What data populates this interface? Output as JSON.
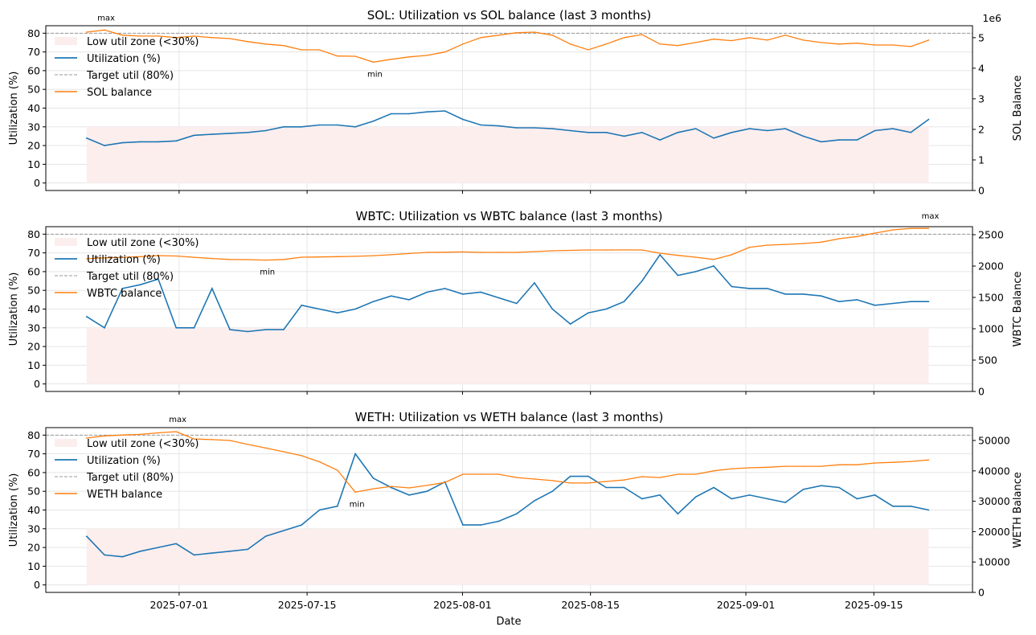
{
  "chart_data": {
    "type": "line",
    "x_tick_labels": [
      "2025-07-01",
      "2025-07-15",
      "2025-08-01",
      "2025-08-15",
      "2025-09-01",
      "2025-09-15"
    ],
    "xlabel": "Date",
    "xlim": [
      "2025-06-16T10:00:00Z",
      "2025-09-25T19:00:00Z"
    ],
    "x_start": "2025-06-20T21:00:00Z",
    "x_end": "2025-09-21T00:00:00Z",
    "grid": true,
    "legend_placement": "upper-left",
    "colors": {
      "utilization": "#1f77b4",
      "balance": "#ff7f0e",
      "target": "#999999",
      "low_zone": "#fdeeee"
    },
    "panels": [
      {
        "title": "SOL: Utilization vs SOL balance (last 3 months)",
        "ylabel": "Utilization (%)",
        "y2label": "SOL Balance",
        "y2_scale_label": "1e6",
        "ylim": [
          -4,
          84
        ],
        "y2lim": [
          0,
          5.39
        ],
        "yticks": [
          0,
          10,
          20,
          30,
          40,
          50,
          60,
          70,
          80
        ],
        "y2ticks": [
          0,
          1,
          2,
          3,
          4,
          5
        ],
        "target_util": 80,
        "low_zone_max": 30,
        "legend": [
          "Low util zone (<30%)",
          "Utilization (%)",
          "Target util (80%)",
          "SOL balance"
        ],
        "utilization": [
          24,
          20,
          21.5,
          22,
          22,
          22.5,
          25.5,
          26,
          26.5,
          27,
          28,
          30,
          30,
          31,
          31,
          30,
          33,
          37,
          37,
          38,
          38.5,
          34,
          31,
          30.5,
          29.5,
          29.5,
          29,
          28,
          27,
          27,
          25,
          27,
          23,
          27,
          29,
          24,
          27,
          29,
          28,
          29,
          25,
          22,
          23,
          23,
          28,
          29,
          27,
          34
        ],
        "balance": [
          5.18,
          5.25,
          5.08,
          5.05,
          5.05,
          5.0,
          5.05,
          5.0,
          4.97,
          4.87,
          4.79,
          4.74,
          4.6,
          4.6,
          4.4,
          4.39,
          4.2,
          4.29,
          4.37,
          4.42,
          4.53,
          4.79,
          5.0,
          5.08,
          5.16,
          5.18,
          5.08,
          4.79,
          4.6,
          4.79,
          5.0,
          5.1,
          4.79,
          4.74,
          4.84,
          4.95,
          4.9,
          5.0,
          4.92,
          5.08,
          4.92,
          4.84,
          4.79,
          4.82,
          4.76,
          4.76,
          4.71,
          4.92
        ],
        "annotations": [
          {
            "label": "max",
            "index": 1,
            "pos": "above"
          },
          {
            "label": "min",
            "index": 16,
            "pos": "below"
          }
        ]
      },
      {
        "title": "WBTC: Utilization vs WBTC balance (last 3 months)",
        "ylabel": "Utilization (%)",
        "y2label": "WBTC Balance",
        "ylim": [
          -4,
          84
        ],
        "y2lim": [
          0,
          2628
        ],
        "yticks": [
          0,
          10,
          20,
          30,
          40,
          50,
          60,
          70,
          80
        ],
        "y2ticks": [
          0,
          500,
          1000,
          1500,
          2000,
          2500
        ],
        "target_util": 80,
        "low_zone_max": 30,
        "legend": [
          "Low util zone (<30%)",
          "Utilization (%)",
          "Target util (80%)",
          "WBTC balance"
        ],
        "utilization": [
          36,
          30,
          51,
          53,
          56,
          30,
          30,
          51,
          29,
          28,
          29,
          29,
          42,
          40,
          38,
          40,
          44,
          47,
          45,
          49,
          51,
          48,
          49,
          46,
          43,
          54,
          40,
          32,
          38,
          40,
          44,
          55,
          69,
          58,
          60,
          63,
          52,
          51,
          51,
          48,
          48,
          47,
          44,
          45,
          42,
          43,
          44,
          44
        ],
        "balance": [
          2115,
          2130,
          2140,
          2150,
          2167,
          2160,
          2140,
          2120,
          2105,
          2103,
          2095,
          2105,
          2141,
          2145,
          2150,
          2155,
          2165,
          2180,
          2200,
          2218,
          2220,
          2225,
          2218,
          2218,
          2218,
          2230,
          2244,
          2250,
          2256,
          2256,
          2258,
          2256,
          2205,
          2170,
          2141,
          2105,
          2180,
          2300,
          2333,
          2345,
          2359,
          2380,
          2436,
          2470,
          2526,
          2577,
          2600,
          2600
        ],
        "annotations": [
          {
            "label": "max",
            "index": 47,
            "pos": "above"
          },
          {
            "label": "min",
            "index": 10,
            "pos": "below"
          }
        ]
      },
      {
        "title": "WETH: Utilization vs WETH balance (last 3 months)",
        "ylabel": "Utilization (%)",
        "y2label": "WETH Balance",
        "ylim": [
          -4,
          84
        ],
        "y2lim": [
          0,
          54230
        ],
        "yticks": [
          0,
          10,
          20,
          30,
          40,
          50,
          60,
          70,
          80
        ],
        "y2ticks": [
          0,
          10000,
          20000,
          30000,
          40000,
          50000
        ],
        "target_util": 80,
        "low_zone_max": 30,
        "legend": [
          "Low util zone (<30%)",
          "Utilization (%)",
          "Target util (80%)",
          "WETH balance"
        ],
        "utilization": [
          26,
          16,
          15,
          18,
          20,
          22,
          16,
          17,
          18,
          19,
          26,
          29,
          32,
          40,
          42,
          70,
          57,
          52,
          48,
          50,
          55,
          32,
          32,
          34,
          38,
          45,
          50,
          58,
          58,
          52,
          52,
          46,
          48,
          38,
          47,
          52,
          46,
          48,
          46,
          44,
          51,
          53,
          52,
          46,
          48,
          42,
          42,
          40
        ],
        "balance": [
          50800,
          51500,
          51800,
          52000,
          52500,
          52900,
          50500,
          50300,
          50000,
          48700,
          47500,
          46300,
          45000,
          43000,
          40200,
          33000,
          34100,
          34900,
          34400,
          35200,
          36200,
          38900,
          38900,
          38900,
          37800,
          37300,
          36800,
          36000,
          36000,
          36500,
          37000,
          38100,
          37800,
          38900,
          38900,
          40000,
          40700,
          41000,
          41200,
          41500,
          41500,
          41500,
          42000,
          42000,
          42600,
          42800,
          43100,
          43600
        ],
        "annotations": [
          {
            "label": "max",
            "index": 5,
            "pos": "above"
          },
          {
            "label": "min",
            "index": 15,
            "pos": "below"
          }
        ]
      }
    ]
  }
}
